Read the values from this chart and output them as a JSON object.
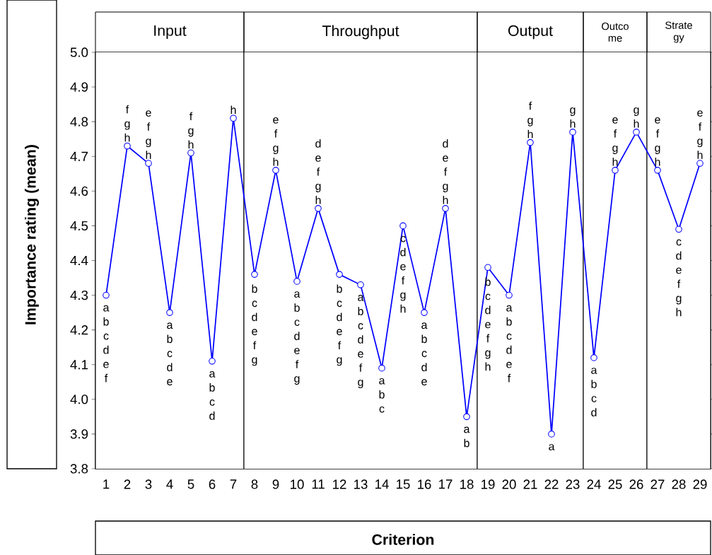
{
  "chart_data": {
    "type": "line",
    "xlabel": "Criterion",
    "ylabel": "Importance rating (mean)",
    "x": [
      1,
      2,
      3,
      4,
      5,
      6,
      7,
      8,
      9,
      10,
      11,
      12,
      13,
      14,
      15,
      16,
      17,
      18,
      19,
      20,
      21,
      22,
      23,
      24,
      25,
      26,
      27,
      28,
      29
    ],
    "series": [
      {
        "color": "#0000ff",
        "values": [
          4.3,
          4.73,
          4.68,
          4.25,
          4.71,
          4.11,
          4.81,
          4.36,
          4.66,
          4.34,
          4.55,
          4.36,
          4.33,
          4.09,
          4.5,
          4.25,
          4.55,
          3.95,
          4.38,
          4.3,
          4.74,
          3.9,
          4.77,
          4.12,
          4.66,
          4.77,
          4.66,
          4.49,
          4.68
        ]
      }
    ],
    "xlim": [
      0.5,
      29.5
    ],
    "xticks": [
      1,
      2,
      3,
      4,
      5,
      6,
      7,
      8,
      9,
      10,
      11,
      12,
      13,
      14,
      15,
      16,
      17,
      18,
      19,
      20,
      21,
      22,
      23,
      24,
      25,
      26,
      27,
      28,
      29
    ],
    "ylim": [
      3.8,
      5.0
    ],
    "yticks": [
      3.8,
      3.9,
      {
        "value": 4.0,
        "label": "4.0"
      },
      4.1,
      4.2,
      4.3,
      4.4,
      4.5,
      4.6,
      4.7,
      4.8,
      4.9,
      {
        "value": 5.0,
        "label": "5.0"
      }
    ],
    "marker": "circle",
    "line_style": "solid",
    "bands": [
      {
        "axis": "x",
        "from": 0.5,
        "to": 7.5,
        "label": "Input",
        "color": "#ffffff"
      },
      {
        "axis": "x",
        "from": 7.5,
        "to": 18.5,
        "label": "Throughput",
        "color": "#ffffff"
      },
      {
        "axis": "x",
        "from": 18.5,
        "to": 23.5,
        "label": "Output",
        "color": "#ffffff"
      },
      {
        "axis": "x",
        "from": 23.5,
        "to": 26.5,
        "label": "Outco me",
        "color": "#ffffff"
      },
      {
        "axis": "x",
        "from": 26.5,
        "to": 29.5,
        "label": "Strate gy",
        "color": "#ffffff"
      }
    ],
    "annotations": [
      {
        "text": "a b c d e f",
        "x": 1,
        "y": 4.3
      },
      {
        "text": "f g h",
        "x": 2,
        "y": 4.73
      },
      {
        "text": "e f g h",
        "x": 3,
        "y": 4.68
      },
      {
        "text": "a b c d e",
        "x": 4,
        "y": 4.25
      },
      {
        "text": "f g h",
        "x": 5,
        "y": 4.71
      },
      {
        "text": "a b c d",
        "x": 6,
        "y": 4.11
      },
      {
        "text": "h",
        "x": 7,
        "y": 4.81
      },
      {
        "text": "b c d e f g",
        "x": 8,
        "y": 4.36
      },
      {
        "text": "e f g h",
        "x": 9,
        "y": 4.66
      },
      {
        "text": "a b c d e f g",
        "x": 10,
        "y": 4.34
      },
      {
        "text": "d e f g h",
        "x": 11,
        "y": 4.55
      },
      {
        "text": "b c d e f g",
        "x": 12,
        "y": 4.36
      },
      {
        "text": "a b c d e f g",
        "x": 13,
        "y": 4.33
      },
      {
        "text": "a b c",
        "x": 14,
        "y": 4.09
      },
      {
        "text": "c d e f g h",
        "x": 15,
        "y": 4.5
      },
      {
        "text": "a b c d e",
        "x": 16,
        "y": 4.25
      },
      {
        "text": "d e f g h",
        "x": 17,
        "y": 4.55
      },
      {
        "text": "a b",
        "x": 18,
        "y": 3.95
      },
      {
        "text": "b c d e f g h",
        "x": 19,
        "y": 4.38
      },
      {
        "text": "a b c d e f",
        "x": 20,
        "y": 4.3
      },
      {
        "text": "f g h",
        "x": 21,
        "y": 4.74
      },
      {
        "text": "a",
        "x": 22,
        "y": 3.9
      },
      {
        "text": "g h",
        "x": 23,
        "y": 4.77
      },
      {
        "text": "a b c d",
        "x": 24,
        "y": 4.12
      },
      {
        "text": "e f g h",
        "x": 25,
        "y": 4.66
      },
      {
        "text": "g h",
        "x": 26,
        "y": 4.77
      },
      {
        "text": "e f g h",
        "x": 27,
        "y": 4.66
      },
      {
        "text": "c d e f g h",
        "x": 28,
        "y": 4.49
      },
      {
        "text": "e f g h",
        "x": 29,
        "y": 4.68
      }
    ]
  }
}
